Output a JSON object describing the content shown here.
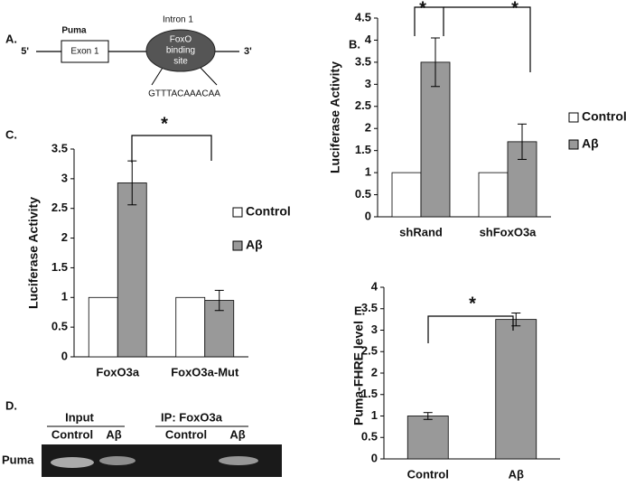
{
  "panel_a": {
    "label": "A.",
    "gene": "Puma",
    "exon": "Exon 1",
    "intron": "Intron 1",
    "site": [
      "FoxO",
      "binding",
      "site"
    ],
    "five": "5'",
    "three": "3'",
    "sequence": "GTTTACAAACAA"
  },
  "chart_data": [
    {
      "type": "bar",
      "label": "B.",
      "ylabel": "Luciferase  Activity",
      "categories": [
        "shRand",
        "shFoxO3a"
      ],
      "series": [
        {
          "name": "Control",
          "color": "#ffffff",
          "values": [
            1,
            1
          ]
        },
        {
          "name": "Aβ",
          "color": "#999999",
          "values": [
            3.5,
            1.7
          ],
          "errors": [
            0.55,
            0.4
          ]
        }
      ],
      "ylim": [
        0,
        4.5
      ],
      "yticks": [
        0,
        0.5,
        1,
        1.5,
        2,
        2.5,
        3,
        3.5,
        4,
        4.5
      ],
      "legend": "right",
      "annotations": [
        "*",
        "*"
      ]
    },
    {
      "type": "bar",
      "label": "C.",
      "ylabel": "Luciferase Activity",
      "categories": [
        "FoxO3a",
        "FoxO3a-Mut"
      ],
      "series": [
        {
          "name": "Control",
          "color": "#ffffff",
          "values": [
            1,
            1
          ]
        },
        {
          "name": "Aβ",
          "color": "#999999",
          "values": [
            2.93,
            0.95
          ],
          "errors": [
            0.37,
            0.17
          ]
        }
      ],
      "ylim": [
        0,
        3.5
      ],
      "yticks": [
        0,
        0.5,
        1,
        1.5,
        2,
        2.5,
        3,
        3.5
      ],
      "legend": "right",
      "annotations": [
        "*"
      ]
    },
    {
      "type": "bar",
      "label": "E.",
      "ylabel": "Puma-FHRE level",
      "categories": [
        "Control",
        "Aβ"
      ],
      "series": [
        {
          "color": "#999999",
          "values": [
            1,
            3.25
          ],
          "errors": [
            0.08,
            0.15
          ]
        }
      ],
      "ylim": [
        0,
        4
      ],
      "yticks": [
        0,
        0.5,
        1,
        1.5,
        2,
        2.5,
        3,
        3.5,
        4
      ],
      "annotations": [
        "*"
      ]
    }
  ],
  "panel_d": {
    "label": "D.",
    "groups": [
      "Input",
      "IP: FoxO3a"
    ],
    "lanes": [
      "Control",
      "Aβ",
      "Control",
      "Aβ"
    ],
    "row_label": "Puma"
  }
}
